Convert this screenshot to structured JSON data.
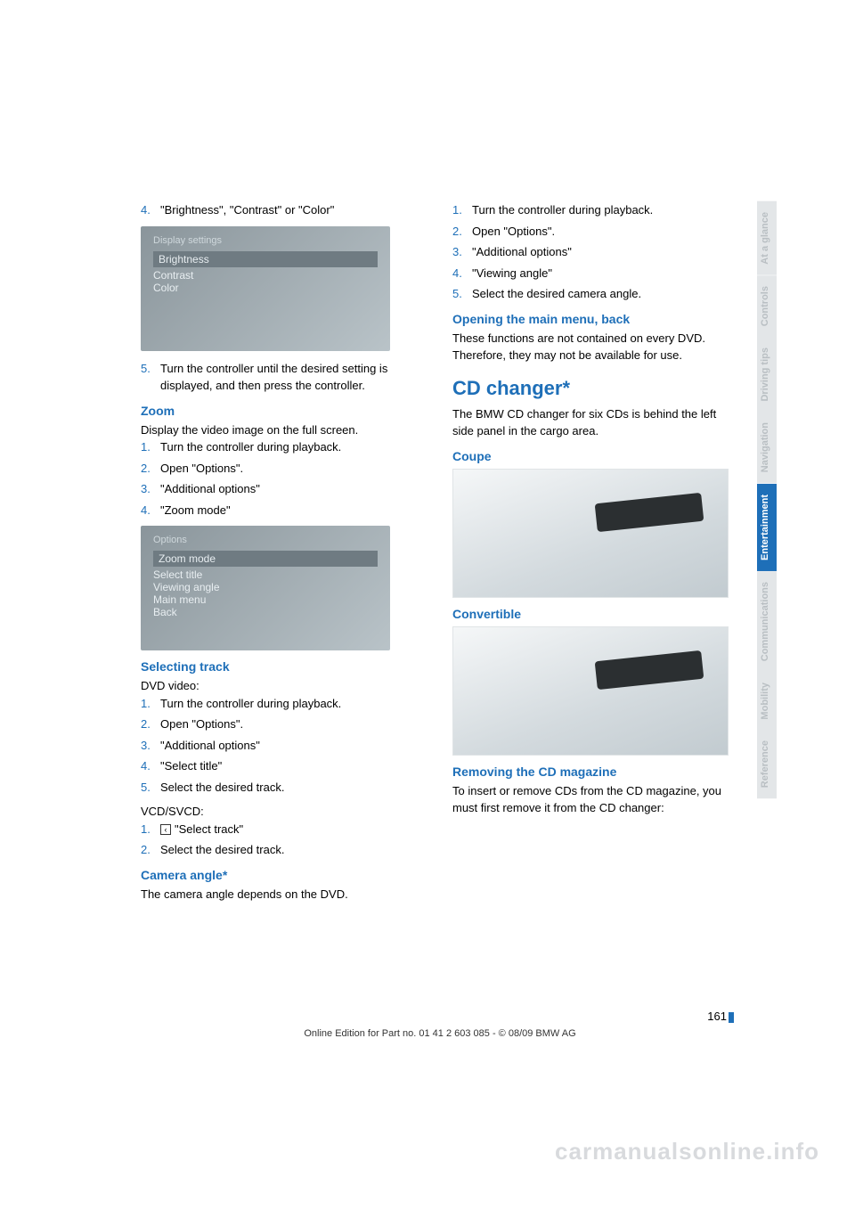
{
  "left": {
    "step4": {
      "num": "4.",
      "text": "\"Brightness\", \"Contrast\" or \"Color\""
    },
    "shot1": {
      "title": "Display settings",
      "items": [
        "Brightness",
        "Contrast",
        "Color"
      ]
    },
    "step5": {
      "num": "5.",
      "text": "Turn the controller until the desired setting is displayed, and then press the controller."
    },
    "zoom": {
      "heading": "Zoom",
      "intro": "Display the video image on the full screen.",
      "steps": [
        {
          "num": "1.",
          "text": "Turn the controller during playback."
        },
        {
          "num": "2.",
          "text": "Open \"Options\"."
        },
        {
          "num": "3.",
          "text": "\"Additional options\""
        },
        {
          "num": "4.",
          "text": "\"Zoom mode\""
        }
      ]
    },
    "shot2": {
      "title": "Options",
      "items": [
        "Zoom mode",
        "Select title",
        "Viewing angle",
        "Main menu",
        "Back"
      ]
    },
    "selecting": {
      "heading": "Selecting track",
      "intro": "DVD video:",
      "steps": [
        {
          "num": "1.",
          "text": "Turn the controller during playback."
        },
        {
          "num": "2.",
          "text": "Open \"Options\"."
        },
        {
          "num": "3.",
          "text": "\"Additional options\""
        },
        {
          "num": "4.",
          "text": "\"Select title\""
        },
        {
          "num": "5.",
          "text": "Select the desired track."
        }
      ],
      "intro2": "VCD/SVCD:",
      "steps2": [
        {
          "num": "1.",
          "text": "\"Select track\""
        },
        {
          "num": "2.",
          "text": "Select the desired track."
        }
      ]
    },
    "camera": {
      "heading": "Camera angle*",
      "intro": "The camera angle depends on the DVD."
    }
  },
  "right": {
    "steps": [
      {
        "num": "1.",
        "text": "Turn the controller during playback."
      },
      {
        "num": "2.",
        "text": "Open \"Options\"."
      },
      {
        "num": "3.",
        "text": "\"Additional options\""
      },
      {
        "num": "4.",
        "text": "\"Viewing angle\""
      },
      {
        "num": "5.",
        "text": "Select the desired camera angle."
      }
    ],
    "opening": {
      "heading": "Opening the main menu, back",
      "text": "These functions are not contained on every DVD. Therefore, they may not be available for use."
    },
    "cd": {
      "heading": "CD changer*",
      "intro": "The BMW CD changer for six CDs is behind the left side panel in the cargo area."
    },
    "coupe": {
      "heading": "Coupe"
    },
    "conv": {
      "heading": "Convertible"
    },
    "removing": {
      "heading": "Removing the CD magazine",
      "text": "To insert or remove CDs from the CD magazine, you must first remove it from the CD changer:"
    }
  },
  "tabs": [
    {
      "label": "At a glance",
      "active": false
    },
    {
      "label": "Controls",
      "active": false
    },
    {
      "label": "Driving tips",
      "active": false
    },
    {
      "label": "Navigation",
      "active": false
    },
    {
      "label": "Entertainment",
      "active": true
    },
    {
      "label": "Communications",
      "active": false
    },
    {
      "label": "Mobility",
      "active": false
    },
    {
      "label": "Reference",
      "active": false
    }
  ],
  "footer": {
    "page": "161",
    "line": "Online Edition for Part no. 01 41 2 603 085 - © 08/09 BMW AG"
  },
  "watermark": "carmanualsonline.info",
  "colors": {
    "accent": "#1e6fb8",
    "tab_inactive_bg": "#e3e6e8",
    "tab_inactive_fg": "#b9bfc3"
  }
}
